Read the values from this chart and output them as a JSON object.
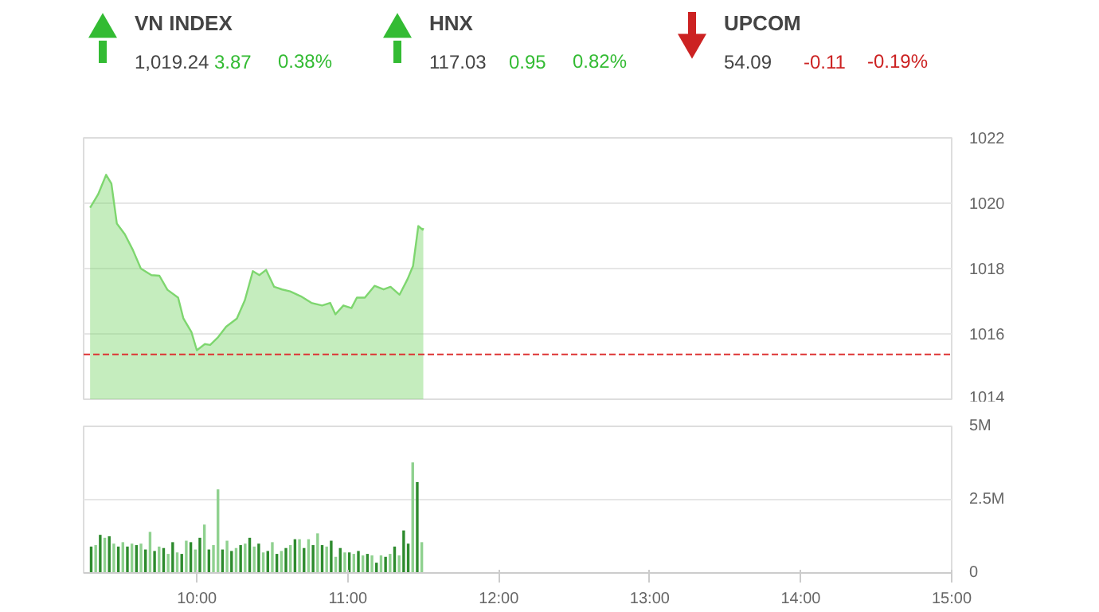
{
  "chart_data": [
    {
      "type": "other",
      "categories": [
        "VN INDEX",
        "HNX",
        "UPCOM"
      ],
      "series": [
        {
          "values": [
            1019.24,
            117.03,
            54.09
          ],
          "value_labels": [
            "1,019.24",
            "117.03",
            "54.09"
          ],
          "colors": [
            "#444444",
            "#444444",
            "#444444"
          ]
        },
        {
          "values": [
            3.87,
            0.95,
            -0.11
          ],
          "value_labels": [
            "3.87",
            "0.95",
            "-0.11"
          ],
          "colors": [
            "#33bb33",
            "#33bb33",
            "#cc2222"
          ]
        },
        {
          "values": [
            0.38,
            0.82,
            -0.19
          ],
          "value_labels": [
            "0.38%",
            "0.82%",
            "-0.19%"
          ],
          "colors": [
            "#33bb33",
            "#33bb33",
            "#cc2222"
          ]
        }
      ]
    },
    {
      "type": "area",
      "xlim": [
        9.25,
        15
      ],
      "ylim": [
        1014,
        1022
      ],
      "yticks": [
        1014,
        1016,
        1018,
        1020,
        1022
      ],
      "grid": "y",
      "tick_labels": "y",
      "ref_lines": [
        {
          "axis": "y",
          "value": 1015.37,
          "color": "#dd3333",
          "line_style": "dashed"
        }
      ],
      "series": [
        {
          "color": "#7ed66f",
          "x": [
            9.293,
            9.346,
            9.399,
            9.434,
            9.47,
            9.523,
            9.576,
            9.629,
            9.699,
            9.752,
            9.805,
            9.876,
            9.911,
            9.964,
            10.0,
            10.053,
            10.088,
            10.141,
            10.194,
            10.265,
            10.318,
            10.371,
            10.414,
            10.459,
            10.512,
            10.565,
            10.618,
            10.689,
            10.759,
            10.83,
            10.883,
            10.918,
            10.971,
            11.024,
            11.06,
            11.113,
            11.177,
            11.237,
            11.283,
            11.343,
            11.396,
            11.432,
            11.467,
            11.496,
            11.5
          ],
          "values": [
            1019.86,
            1020.27,
            1020.87,
            1020.6,
            1019.38,
            1019.05,
            1018.57,
            1018.0,
            1017.8,
            1017.78,
            1017.35,
            1017.11,
            1016.47,
            1016.06,
            1015.5,
            1015.69,
            1015.66,
            1015.9,
            1016.22,
            1016.47,
            1017.03,
            1017.92,
            1017.8,
            1017.96,
            1017.44,
            1017.36,
            1017.3,
            1017.15,
            1016.95,
            1016.87,
            1016.95,
            1016.6,
            1016.87,
            1016.79,
            1017.11,
            1017.11,
            1017.47,
            1017.36,
            1017.44,
            1017.2,
            1017.68,
            1018.08,
            1019.3,
            1019.19,
            1019.24
          ]
        }
      ]
    },
    {
      "type": "bar",
      "xlim": [
        9.25,
        15
      ],
      "ylim": [
        0,
        5
      ],
      "yticks": [
        0,
        {
          "value": 2.5,
          "label": "2.5M"
        },
        {
          "value": 5,
          "label": "5M"
        }
      ],
      "xticks": [
        {
          "value": 10,
          "label": "10:00"
        },
        {
          "value": 11,
          "label": "11:00"
        },
        {
          "value": 12,
          "label": "12:00"
        },
        {
          "value": 13,
          "label": "13:00"
        },
        {
          "value": 14,
          "label": "14:00"
        },
        {
          "value": 15,
          "label": "15:00"
        }
      ],
      "grid": "y",
      "x": [
        9.3,
        9.33,
        9.36,
        9.39,
        9.42,
        9.45,
        9.48,
        9.51,
        9.54,
        9.57,
        9.6,
        9.63,
        9.66,
        9.69,
        9.72,
        9.75,
        9.78,
        9.81,
        9.84,
        9.87,
        9.9,
        9.93,
        9.96,
        9.99,
        10.02,
        10.05,
        10.08,
        10.11,
        10.14,
        10.17,
        10.2,
        10.23,
        10.26,
        10.29,
        10.32,
        10.35,
        10.38,
        10.41,
        10.44,
        10.47,
        10.5,
        10.53,
        10.56,
        10.59,
        10.62,
        10.65,
        10.68,
        10.71,
        10.74,
        10.77,
        10.8,
        10.83,
        10.86,
        10.89,
        10.92,
        10.95,
        10.98,
        11.01,
        11.04,
        11.07,
        11.1,
        11.13,
        11.16,
        11.19,
        11.22,
        11.25,
        11.28,
        11.31,
        11.34,
        11.37,
        11.4,
        11.43,
        11.46,
        11.49
      ],
      "values": [
        0.9,
        0.95,
        1.3,
        1.2,
        1.25,
        1.0,
        0.9,
        1.05,
        0.9,
        1.0,
        0.95,
        1.0,
        0.8,
        1.4,
        0.75,
        0.9,
        0.85,
        0.65,
        1.05,
        0.7,
        0.65,
        1.1,
        1.05,
        0.8,
        1.2,
        1.65,
        0.8,
        0.95,
        2.85,
        0.8,
        1.1,
        0.75,
        0.85,
        0.95,
        1.0,
        1.2,
        0.9,
        1.0,
        0.7,
        0.75,
        1.05,
        0.65,
        0.75,
        0.85,
        0.95,
        1.15,
        1.15,
        0.85,
        1.15,
        0.95,
        1.35,
        0.95,
        0.9,
        1.1,
        0.55,
        0.85,
        0.7,
        0.7,
        0.65,
        0.75,
        0.6,
        0.65,
        0.6,
        0.35,
        0.6,
        0.55,
        0.65,
        0.9,
        0.6,
        1.45,
        1.0,
        3.77,
        3.1,
        1.05
      ],
      "colors": [
        "#2e8b2e",
        "#8fd18f",
        "#2e8b2e",
        "#8fd18f",
        "#2e8b2e",
        "#8fd18f",
        "#2e8b2e",
        "#8fd18f",
        "#2e8b2e",
        "#8fd18f",
        "#2e8b2e",
        "#8fd18f",
        "#2e8b2e",
        "#8fd18f",
        "#2e8b2e",
        "#8fd18f",
        "#2e8b2e",
        "#8fd18f",
        "#2e8b2e",
        "#8fd18f",
        "#2e8b2e",
        "#8fd18f",
        "#2e8b2e",
        "#8fd18f",
        "#2e8b2e",
        "#8fd18f",
        "#2e8b2e",
        "#8fd18f",
        "#8fd18f",
        "#2e8b2e",
        "#8fd18f",
        "#2e8b2e",
        "#8fd18f",
        "#2e8b2e",
        "#8fd18f",
        "#2e8b2e",
        "#8fd18f",
        "#2e8b2e",
        "#8fd18f",
        "#2e8b2e",
        "#8fd18f",
        "#2e8b2e",
        "#8fd18f",
        "#2e8b2e",
        "#8fd18f",
        "#2e8b2e",
        "#8fd18f",
        "#2e8b2e",
        "#8fd18f",
        "#2e8b2e",
        "#8fd18f",
        "#2e8b2e",
        "#8fd18f",
        "#2e8b2e",
        "#8fd18f",
        "#2e8b2e",
        "#8fd18f",
        "#2e8b2e",
        "#8fd18f",
        "#2e8b2e",
        "#8fd18f",
        "#2e8b2e",
        "#8fd18f",
        "#2e8b2e",
        "#8fd18f",
        "#2e8b2e",
        "#8fd18f",
        "#2e8b2e",
        "#8fd18f",
        "#2e8b2e",
        "#2e8b2e",
        "#8fd18f",
        "#2e8b2e",
        "#8fd18f"
      ]
    }
  ]
}
